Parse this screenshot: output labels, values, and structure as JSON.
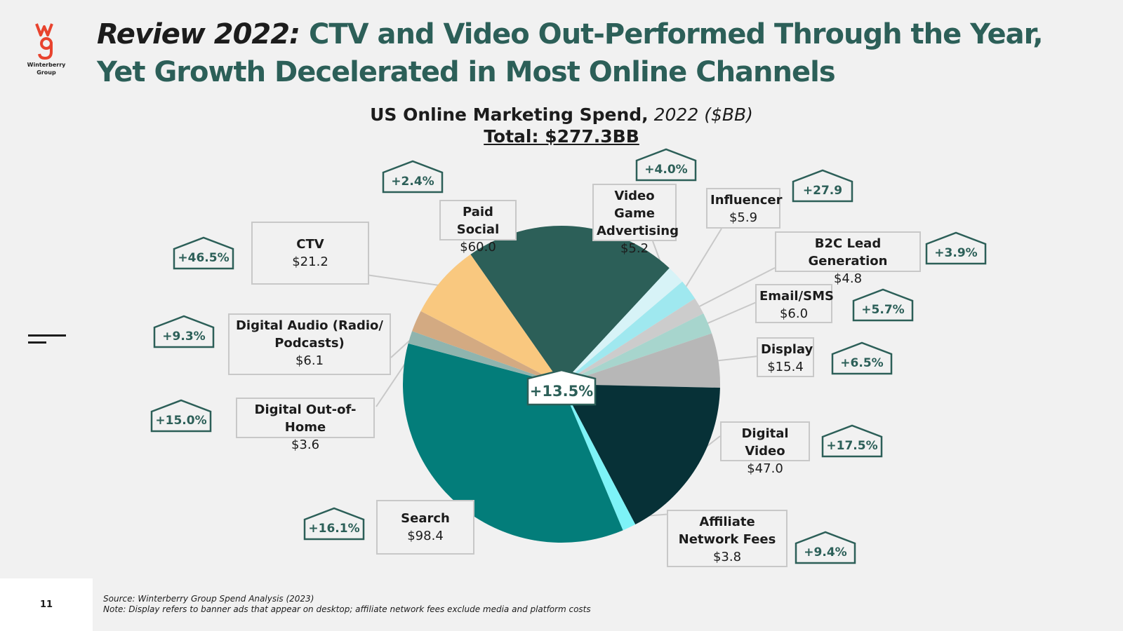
{
  "logo": {
    "glyph": "wg",
    "text_line1": "Winterberry",
    "text_line2": "Group",
    "color": "#e8432e"
  },
  "header": {
    "title_prefix": "Review 2022:",
    "title_main": "CTV and Video Out-Performed Through the Year, Yet Growth Decelerated in Most Online Channels"
  },
  "chart_heading": {
    "title_bold": "US Online Marketing Spend,",
    "title_italic": "2022 ($BB)",
    "total": "Total: $277.3BB"
  },
  "center_growth": "+13.5%",
  "chart_data": {
    "type": "pie",
    "title": "US Online Marketing Spend, 2022 ($BB)",
    "total": 277.3,
    "unit": "$BB",
    "overall_growth": "+13.5%",
    "slices": [
      {
        "name": "Paid Social",
        "value": 60.0,
        "growth": "+2.4%",
        "color": "#2c5f58"
      },
      {
        "name": "Video Game Advertising",
        "value": 5.2,
        "growth": "+4.0%",
        "color": "#d7f3f7"
      },
      {
        "name": "Influencer",
        "value": 5.9,
        "growth": "+27.9",
        "color": "#9fe8ef"
      },
      {
        "name": "B2C Lead Generation",
        "value": 4.8,
        "growth": "+3.9%",
        "color": "#cccccc"
      },
      {
        "name": "Email/SMS",
        "value": 6.0,
        "growth": "+5.7%",
        "color": "#a7d5cd"
      },
      {
        "name": "Display",
        "value": 15.4,
        "growth": "+6.5%",
        "color": "#b7b7b7"
      },
      {
        "name": "Digital Video",
        "value": 47.0,
        "growth": "+17.5%",
        "color": "#073137"
      },
      {
        "name": "Affiliate Network Fees",
        "value": 3.8,
        "growth": "+9.4%",
        "color": "#7df3f7"
      },
      {
        "name": "Search",
        "value": 98.4,
        "growth": "+16.1%",
        "color": "#037d7a"
      },
      {
        "name": "Digital Out-of-Home",
        "value": 3.6,
        "growth": "+15.0%",
        "color": "#8fb4ae"
      },
      {
        "name": "Digital Audio (Radio/ Podcasts)",
        "value": 6.1,
        "growth": "+9.3%",
        "color": "#d3aa82"
      },
      {
        "name": "CTV",
        "value": 21.2,
        "growth": "+46.5%",
        "color": "#f9c87f"
      }
    ]
  },
  "labels": [
    {
      "name": "Paid Social",
      "value": "$60.0"
    },
    {
      "name": "Video Game Advertising",
      "value": "$5.2"
    },
    {
      "name": "Influencer",
      "value": "$5.9"
    },
    {
      "name": "B2C Lead Generation",
      "value": "$4.8"
    },
    {
      "name": "Email/SMS",
      "value": "$6.0"
    },
    {
      "name": "Display",
      "value": "$15.4"
    },
    {
      "name": "Digital Video",
      "value": "$47.0"
    },
    {
      "name": "Affiliate Network Fees",
      "value": "$3.8"
    },
    {
      "name": "Search",
      "value": "$98.4"
    },
    {
      "name": "Digital Out-of-Home",
      "value": "$3.6"
    },
    {
      "name": "Digital Audio (Radio/ Podcasts)",
      "value": "$6.1"
    },
    {
      "name": "CTV",
      "value": "$21.2"
    }
  ],
  "footer": {
    "page_number": "11",
    "source": "Source: Winterberry Group Spend Analysis (2023)",
    "note": "Note: Display refers to banner ads that appear on desktop; affiliate network fees exclude media and platform costs"
  }
}
